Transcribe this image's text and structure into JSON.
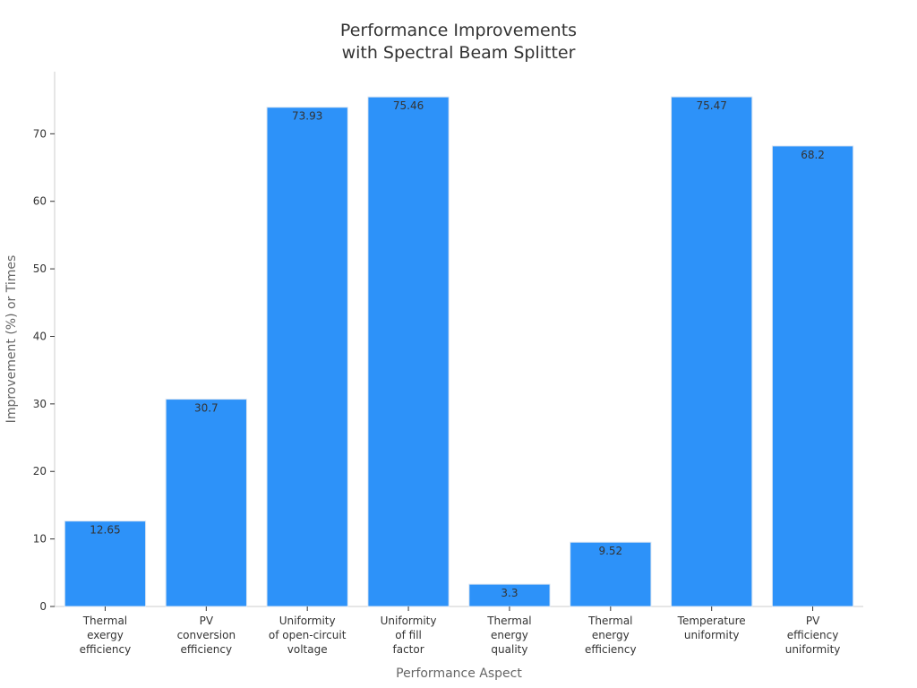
{
  "chart_data": {
    "type": "bar",
    "title": "Performance Improvements\nwith Spectral Beam Splitter",
    "xlabel": "Performance Aspect",
    "ylabel": "Improvement (%) or Times",
    "categories": [
      "Thermal\nexergy\nefficiency",
      "PV\nconversion\nefficiency",
      "Uniformity\nof open-circuit\nvoltage",
      "Uniformity\nof fill\nfactor",
      "Thermal\nenergy\nquality",
      "Thermal\nenergy\nefficiency",
      "Temperature\nuniformity",
      "PV\nefficiency\nuniformity"
    ],
    "values": [
      12.65,
      30.7,
      73.93,
      75.46,
      3.3,
      9.52,
      75.47,
      68.2
    ],
    "value_labels": [
      "12.65",
      "30.7",
      "73.93",
      "75.46",
      "3.3",
      "9.52",
      "75.47",
      "68.2"
    ],
    "ylim": [
      0,
      79.2
    ],
    "yticks": [
      0,
      10,
      20,
      30,
      40,
      50,
      60,
      70
    ],
    "grid": false,
    "legend": "none",
    "colors": {
      "bar": "#2d92f9",
      "bar_edge": "#dbe6f2",
      "axis": "#cccccc",
      "text": "#333333",
      "axis_title": "#666666"
    }
  }
}
